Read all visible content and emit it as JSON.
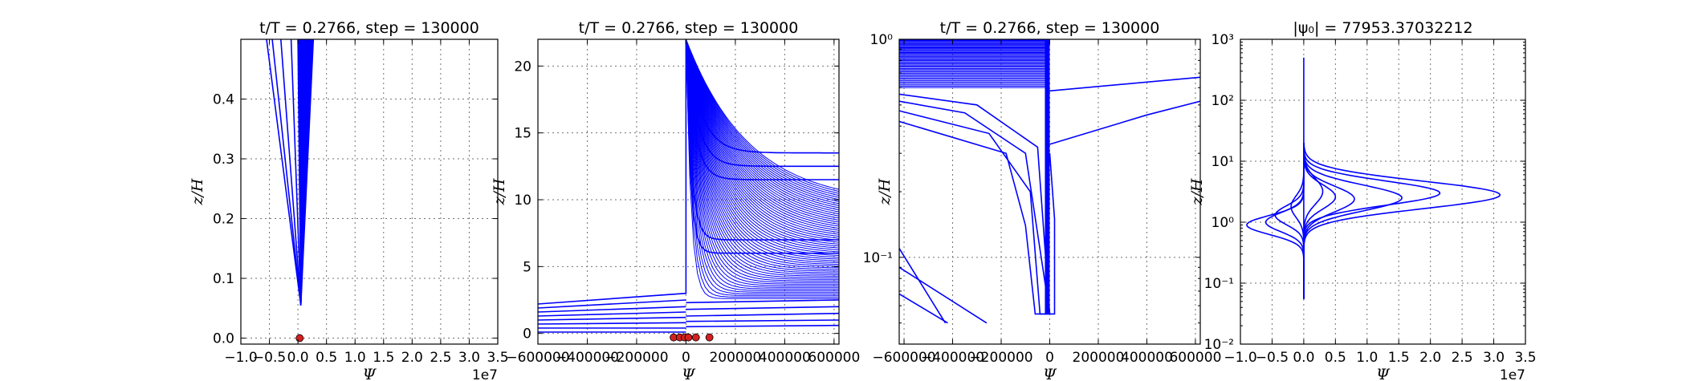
{
  "figure": {
    "line_color": "#0000ff",
    "marker_color": "#d62020",
    "grid": true
  },
  "chart_data": [
    {
      "type": "line",
      "title": "t/T = 0.2766, step = 130000",
      "xlabel": "Ψ",
      "ylabel": "z/H",
      "x_offset_label": "1e7",
      "xlim": [
        -1.0,
        3.5
      ],
      "ylim": [
        -0.01,
        0.5
      ],
      "yscale": "linear",
      "xticks": [
        -1.0,
        -0.5,
        0.0,
        0.5,
        1.0,
        1.5,
        2.0,
        2.5,
        3.0,
        3.5
      ],
      "xtick_labels": [
        "−1.0",
        "−0.5",
        "0.0",
        "0.5",
        "1.0",
        "1.5",
        "2.0",
        "2.5",
        "3.0",
        "3.5"
      ],
      "yticks": [
        0.0,
        0.1,
        0.2,
        0.3,
        0.4
      ],
      "ytick_labels": [
        "0.0",
        "0.1",
        "0.2",
        "0.3",
        "0.4"
      ],
      "series": [
        {
          "x": [
            -0.55,
            0.05
          ],
          "y": [
            0.5,
            0.055
          ]
        },
        {
          "x": [
            -0.45,
            0.05
          ],
          "y": [
            0.5,
            0.055
          ]
        },
        {
          "x": [
            -0.3,
            0.05
          ],
          "y": [
            0.5,
            0.055
          ]
        },
        {
          "x": [
            -0.12,
            0.05
          ],
          "y": [
            0.5,
            0.055
          ]
        },
        {
          "x": [
            0.0,
            0.05
          ],
          "y": [
            0.5,
            0.055
          ]
        },
        {
          "x": [
            0.08,
            0.05
          ],
          "y": [
            0.5,
            0.055
          ]
        },
        {
          "x": [
            0.13,
            0.05
          ],
          "y": [
            0.5,
            0.055
          ]
        },
        {
          "x": [
            0.18,
            0.05
          ],
          "y": [
            0.5,
            0.055
          ]
        },
        {
          "x": [
            0.22,
            0.05
          ],
          "y": [
            0.5,
            0.055
          ]
        },
        {
          "x": [
            0.27,
            0.05
          ],
          "y": [
            0.5,
            0.055
          ]
        }
      ],
      "markers": [
        {
          "x": 0.03,
          "y": 0.0
        }
      ]
    },
    {
      "type": "line",
      "title": "t/T = 0.2766, step = 130000",
      "xlabel": "Ψ",
      "ylabel": "z/H",
      "xlim": [
        -600000,
        620000
      ],
      "ylim": [
        -0.8,
        22
      ],
      "yscale": "linear",
      "xticks": [
        -600000,
        -400000,
        -200000,
        0,
        200000,
        400000,
        600000
      ],
      "xtick_labels": [
        "−600000",
        "−400000",
        "−200000",
        "0",
        "200000",
        "400000",
        "600000"
      ],
      "yticks": [
        0,
        5,
        10,
        15,
        20
      ],
      "ytick_labels": [
        "0",
        "5",
        "10",
        "15",
        "20"
      ],
      "series": [
        {
          "x": [
            -600000,
            0,
            0
          ],
          "y": [
            2.2,
            3.0,
            22
          ]
        },
        {
          "x": [
            -600000,
            0
          ],
          "y": [
            1.9,
            2.5
          ]
        },
        {
          "x": [
            -600000,
            0
          ],
          "y": [
            1.6,
            2.0
          ]
        },
        {
          "x": [
            -600000,
            0
          ],
          "y": [
            1.3,
            1.6
          ]
        },
        {
          "x": [
            -600000,
            0
          ],
          "y": [
            1.0,
            1.2
          ]
        },
        {
          "x": [
            -600000,
            0
          ],
          "y": [
            0.7,
            0.8
          ]
        },
        {
          "x": [
            -600000,
            0
          ],
          "y": [
            0.4,
            0.4
          ]
        },
        {
          "x": [
            -600000,
            0
          ],
          "y": [
            0.1,
            0.1
          ]
        },
        {
          "x": [
            0,
            620000
          ],
          "y": [
            0.5,
            0.6
          ]
        },
        {
          "x": [
            0,
            620000
          ],
          "y": [
            0.9,
            1.0
          ]
        },
        {
          "x": [
            0,
            620000
          ],
          "y": [
            1.3,
            1.5
          ]
        },
        {
          "x": [
            0,
            620000
          ],
          "y": [
            1.8,
            2.0
          ]
        },
        {
          "x": [
            0,
            620000
          ],
          "y": [
            2.3,
            2.5
          ]
        }
      ],
      "markers": [
        {
          "x": -50000,
          "y": -0.3
        },
        {
          "x": -25000,
          "y": -0.3
        },
        {
          "x": -5000,
          "y": -0.3
        },
        {
          "x": 10000,
          "y": -0.3
        },
        {
          "x": 40000,
          "y": -0.3
        },
        {
          "x": 95000,
          "y": -0.3
        }
      ]
    },
    {
      "type": "line",
      "title": "t/T = 0.2766, step = 130000",
      "xlabel": "Ψ",
      "ylabel": "z/H",
      "xlim": [
        -620000,
        620000
      ],
      "ylim": [
        0.04,
        1.0
      ],
      "yscale": "log",
      "xticks": [
        -600000,
        -400000,
        -200000,
        0,
        200000,
        400000,
        600000
      ],
      "xtick_labels": [
        "−600000",
        "−400000",
        "−200000",
        "0",
        "200000",
        "400000",
        "600000"
      ],
      "yticks": [
        0.1,
        1.0
      ],
      "ytick_labels": [
        "10⁻¹",
        "10⁰"
      ],
      "series": [
        {
          "x": [
            0,
            620000
          ],
          "y": [
            0.58,
            0.67
          ]
        },
        {
          "x": [
            0,
            400000,
            620000
          ],
          "y": [
            0.33,
            0.45,
            0.52
          ]
        },
        {
          "x": [
            -620000,
            -180000,
            -100000,
            -60000,
            0
          ],
          "y": [
            0.42,
            0.3,
            0.14,
            0.055,
            0.055
          ]
        },
        {
          "x": [
            -620000,
            -250000,
            -80000,
            -40000,
            0
          ],
          "y": [
            0.47,
            0.37,
            0.2,
            0.055,
            0.055
          ]
        },
        {
          "x": [
            -620000,
            -350000,
            -100000,
            0
          ],
          "y": [
            0.52,
            0.46,
            0.3,
            0.055
          ]
        },
        {
          "x": [
            -620000,
            -300000,
            -50000,
            0
          ],
          "y": [
            0.56,
            0.5,
            0.32,
            0.055
          ]
        },
        {
          "x": [
            0,
            20000,
            20000,
            0
          ],
          "y": [
            0.055,
            0.055,
            0.15,
            0.3
          ]
        },
        {
          "x": [
            -620000,
            -430000
          ],
          "y": [
            0.11,
            0.05
          ]
        },
        {
          "x": [
            -620000,
            -260000
          ],
          "y": [
            0.09,
            0.05
          ]
        },
        {
          "x": [
            -620000,
            -420000
          ],
          "y": [
            0.068,
            0.05
          ]
        }
      ],
      "markers": []
    },
    {
      "type": "line",
      "title": "|ψ₀| = 77953.37032212",
      "xlabel": "Ψ",
      "ylabel": "z/H",
      "x_offset_label": "1e7",
      "xlim": [
        -1.0,
        3.5
      ],
      "ylim": [
        0.01,
        1000
      ],
      "yscale": "log",
      "xticks": [
        -1.0,
        -0.5,
        0.0,
        0.5,
        1.0,
        1.5,
        2.0,
        2.5,
        3.0,
        3.5
      ],
      "xtick_labels": [
        "−1.0",
        "−0.5",
        "0.0",
        "0.5",
        "1.0",
        "1.5",
        "2.0",
        "2.5",
        "3.0",
        "3.5"
      ],
      "yticks": [
        0.01,
        0.1,
        1,
        10,
        100,
        1000
      ],
      "ytick_labels": [
        "10⁻²",
        "10⁻¹",
        "10⁰",
        "10¹",
        "10²",
        "10³"
      ],
      "series": [
        {
          "x": [
            0,
            0
          ],
          "y": [
            0.055,
            500
          ]
        },
        {
          "peak": 3.1,
          "center": 2.8,
          "width": 0.32
        },
        {
          "peak": 2.15,
          "center": 3.0,
          "width": 0.28
        },
        {
          "peak": 1.55,
          "center": 2.5,
          "width": 0.3
        },
        {
          "peak": 0.8,
          "center": 2.4,
          "width": 0.3
        },
        {
          "peak": 0.5,
          "center": 2.6,
          "width": 0.28
        },
        {
          "peak": -0.9,
          "center": 0.9,
          "width": 0.22
        },
        {
          "peak": -0.6,
          "center": 1.0,
          "width": 0.22
        },
        {
          "peak": -0.45,
          "center": 1.3,
          "width": 0.22
        },
        {
          "peak": 0.3,
          "center": 3.2,
          "width": 0.3
        },
        {
          "peak": -0.2,
          "center": 1.8,
          "width": 0.25
        }
      ],
      "markers": []
    }
  ]
}
